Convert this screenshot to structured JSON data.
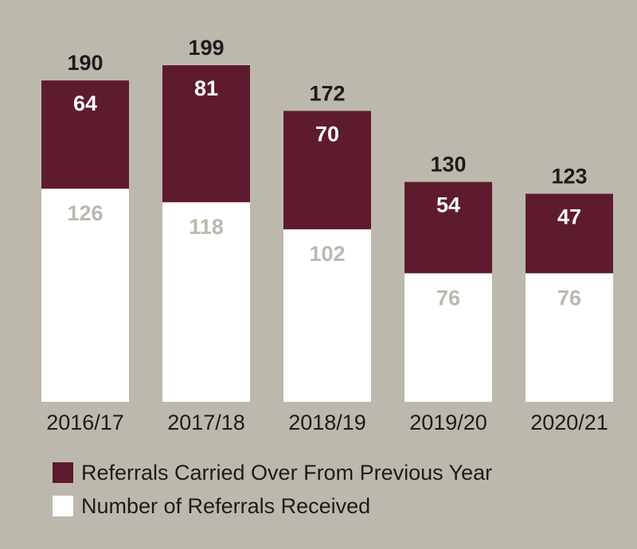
{
  "chart_data": {
    "type": "bar",
    "stacked": true,
    "categories": [
      "2016/17",
      "2017/18",
      "2018/19",
      "2019/20",
      "2020/21"
    ],
    "series": [
      {
        "name": "Number of Referrals Received",
        "values": [
          126,
          118,
          102,
          76,
          76
        ],
        "color": "#ffffff",
        "label_color": "#bdb8ad"
      },
      {
        "name": "Referrals Carried Over From Previous Year",
        "values": [
          64,
          81,
          70,
          54,
          47
        ],
        "color": "#5e1b2d",
        "label_color": "#ffffff"
      }
    ],
    "totals": [
      "190",
      "199",
      "172",
      "130",
      "123"
    ],
    "title": "",
    "xlabel": "",
    "ylabel": "",
    "ylim": [
      0,
      199
    ],
    "grid": false,
    "legend_position": "bottom-left"
  },
  "legend": {
    "items": [
      {
        "label": "Referrals Carried Over From Previous Year",
        "color": "#5e1b2d"
      },
      {
        "label": "Number of Referrals Received",
        "color": "#ffffff"
      }
    ]
  }
}
